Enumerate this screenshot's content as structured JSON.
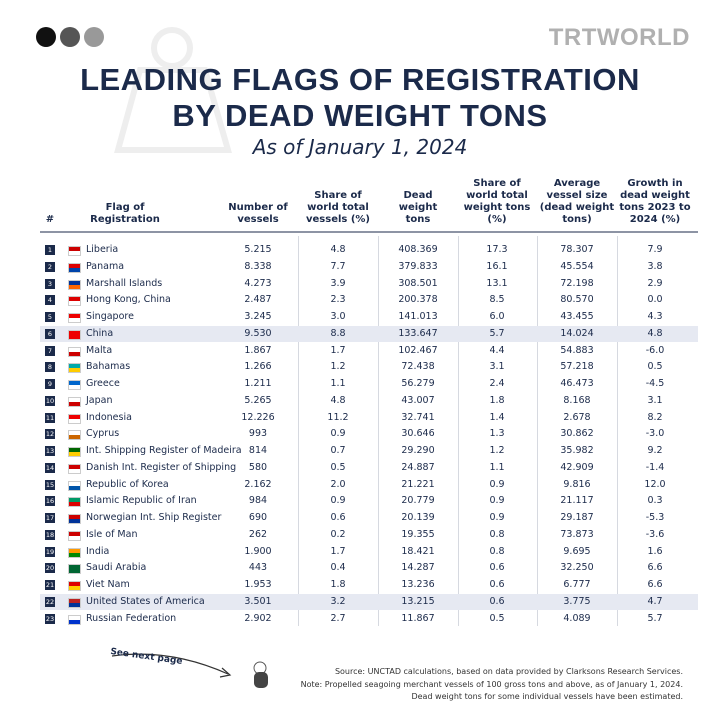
{
  "logo": "TRTWORLD",
  "header": {
    "title_lines": [
      "LEADING FLAGS OF REGISTRATION",
      "BY DEAD WEIGHT TONS"
    ],
    "subtitle": "As of January 1, 2024"
  },
  "table": {
    "columns": [
      "#",
      "Flag of Registration",
      "Number of vessels",
      "Share of world total vessels (%)",
      "Dead weight tons",
      "Share of world total weight tons (%)",
      "Average vessel size (dead weight tons)",
      "Growth in dead weight tons 2023 to 2024 (%)"
    ],
    "rows": [
      [
        "1",
        "Liberia",
        "5.215",
        "4.8",
        "408.369",
        "17.3",
        "78.307",
        "7.9"
      ],
      [
        "2",
        "Panama",
        "8.338",
        "7.7",
        "379.833",
        "16.1",
        "45.554",
        "3.8"
      ],
      [
        "3",
        "Marshall Islands",
        "4.273",
        "3.9",
        "308.501",
        "13.1",
        "72.198",
        "2.9"
      ],
      [
        "4",
        "Hong Kong, China",
        "2.487",
        "2.3",
        "200.378",
        "8.5",
        "80.570",
        "0.0"
      ],
      [
        "5",
        "Singapore",
        "3.245",
        "3.0",
        "141.013",
        "6.0",
        "43.455",
        "4.3"
      ],
      [
        "6",
        "China",
        "9.530",
        "8.8",
        "133.647",
        "5.7",
        "14.024",
        "4.8"
      ],
      [
        "7",
        "Malta",
        "1.867",
        "1.7",
        "102.467",
        "4.4",
        "54.883",
        "-6.0"
      ],
      [
        "8",
        "Bahamas",
        "1.266",
        "1.2",
        "72.438",
        "3.1",
        "57.218",
        "0.5"
      ],
      [
        "9",
        "Greece",
        "1.211",
        "1.1",
        "56.279",
        "2.4",
        "46.473",
        "-4.5"
      ],
      [
        "10",
        "Japan",
        "5.265",
        "4.8",
        "43.007",
        "1.8",
        "8.168",
        "3.1"
      ],
      [
        "11",
        "Indonesia",
        "12.226",
        "11.2",
        "32.741",
        "1.4",
        "2.678",
        "8.2"
      ],
      [
        "12",
        "Cyprus",
        "993",
        "0.9",
        "30.646",
        "1.3",
        "30.862",
        "-3.0"
      ],
      [
        "13",
        "Int. Shipping Register of Madeira",
        "814",
        "0.7",
        "29.290",
        "1.2",
        "35.982",
        "9.2"
      ],
      [
        "14",
        "Danish Int. Register of Shipping",
        "580",
        "0.5",
        "24.887",
        "1.1",
        "42.909",
        "-1.4"
      ],
      [
        "15",
        "Republic of Korea",
        "2.162",
        "2.0",
        "21.221",
        "0.9",
        "9.816",
        "12.0"
      ],
      [
        "16",
        "Islamic Republic of Iran",
        "984",
        "0.9",
        "20.779",
        "0.9",
        "21.117",
        "0.3"
      ],
      [
        "17",
        "Norwegian Int. Ship Register",
        "690",
        "0.6",
        "20.139",
        "0.9",
        "29.187",
        "-5.3"
      ],
      [
        "18",
        "Isle of Man",
        "262",
        "0.2",
        "19.355",
        "0.8",
        "73.873",
        "-3.6"
      ],
      [
        "19",
        "India",
        "1.900",
        "1.7",
        "18.421",
        "0.8",
        "9.695",
        "1.6"
      ],
      [
        "20",
        "Saudi Arabia",
        "443",
        "0.4",
        "14.287",
        "0.6",
        "32.250",
        "6.6"
      ],
      [
        "21",
        "Viet Nam",
        "1.953",
        "1.8",
        "13.236",
        "0.6",
        "6.777",
        "6.6"
      ],
      [
        "22",
        "United States of America",
        "3.501",
        "3.2",
        "13.215",
        "0.6",
        "3.775",
        "4.7"
      ],
      [
        "23",
        "Russian Federation",
        "2.902",
        "2.7",
        "11.867",
        "0.5",
        "4.089",
        "5.7"
      ]
    ]
  },
  "next_page": "See next page",
  "notes": [
    "Source: UNCTAD calculations, based on data provided by Clarksons Research Services.",
    "Note: Propelled seagoing merchant vessels of 100 gross tons and above, as of January 1, 2024.",
    "Dead weight tons for some individual vessels have been estimated."
  ]
}
